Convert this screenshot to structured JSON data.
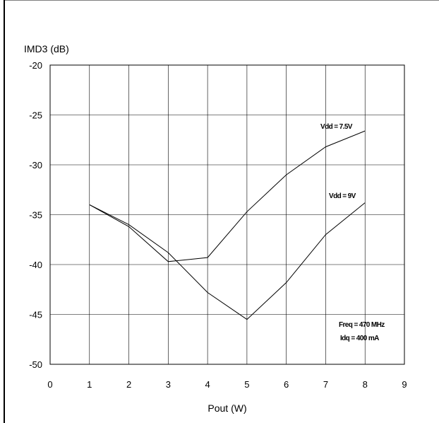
{
  "chart_data": {
    "type": "line",
    "ylabel": "IMD3 (dB)",
    "xlabel": "Pout (W)",
    "xlim": [
      0,
      9
    ],
    "ylim": [
      -50,
      -20
    ],
    "x_ticks": [
      "0",
      "1",
      "2",
      "3",
      "4",
      "5",
      "6",
      "7",
      "8",
      "9"
    ],
    "y_ticks": [
      "-20",
      "-25",
      "-30",
      "-35",
      "-40",
      "-45",
      "-50"
    ],
    "grid": true,
    "series": [
      {
        "name": "Vdd = 7.5V",
        "x": [
          1,
          2,
          3,
          4,
          5,
          6,
          7,
          8
        ],
        "y": [
          -34,
          -36.2,
          -39.7,
          -39.3,
          -34.7,
          -31.0,
          -28.2,
          -26.6
        ]
      },
      {
        "name": "Vdd = 9V",
        "x": [
          1,
          2,
          3,
          4,
          5,
          6,
          7,
          8
        ],
        "y": [
          -34,
          -36.0,
          -38.8,
          -42.8,
          -45.5,
          -41.8,
          -37.0,
          -33.8
        ]
      }
    ],
    "annotations": [
      "Freq = 470 MHz",
      "Idq = 400 mA"
    ]
  }
}
